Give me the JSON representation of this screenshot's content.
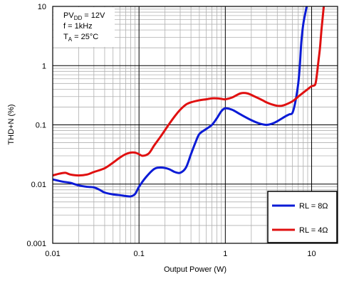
{
  "chart_data": {
    "type": "line",
    "xlabel": "Output Power (W)",
    "ylabel": "THD+N (%)",
    "xscale": "log",
    "yscale": "log",
    "xlim": [
      0.01,
      20
    ],
    "ylim": [
      0.001,
      10
    ],
    "grid": true,
    "x_ticks": [
      {
        "value": 0.01,
        "label": "0.01"
      },
      {
        "value": 0.1,
        "label": "0.1"
      },
      {
        "value": 1,
        "label": "1"
      },
      {
        "value": 10,
        "label": "10"
      }
    ],
    "y_ticks": [
      {
        "value": 0.001,
        "label": "0.001"
      },
      {
        "value": 0.01,
        "label": "0.01"
      },
      {
        "value": 0.1,
        "label": "0.1"
      },
      {
        "value": 1,
        "label": "1"
      },
      {
        "value": 10,
        "label": "10"
      }
    ],
    "conditions": {
      "line1_main": "PV",
      "line1_sub": "DD",
      "line1_rest": " = 12V",
      "line2": "f = 1kHz",
      "line3_main": "T",
      "line3_sub": "A",
      "line3_rest": " = 25°C"
    },
    "legend_position": "bottom-right",
    "series": [
      {
        "name": "RL = 8Ω",
        "color": "#0b1bd6",
        "x": [
          0.01,
          0.013,
          0.016,
          0.02,
          0.025,
          0.03,
          0.035,
          0.04,
          0.05,
          0.06,
          0.07,
          0.08,
          0.09,
          0.1,
          0.12,
          0.15,
          0.18,
          0.22,
          0.26,
          0.3,
          0.35,
          0.4,
          0.45,
          0.5,
          0.6,
          0.7,
          0.8,
          0.9,
          1.0,
          1.2,
          1.5,
          2.0,
          2.5,
          3.0,
          3.5,
          4.0,
          5.0,
          5.5,
          6.0,
          6.5,
          7.0,
          7.3,
          7.6,
          8.0,
          8.5,
          9.0
        ],
        "values": [
          0.012,
          0.011,
          0.0105,
          0.0095,
          0.009,
          0.0088,
          0.008,
          0.0072,
          0.0067,
          0.0065,
          0.0063,
          0.0062,
          0.0068,
          0.009,
          0.013,
          0.018,
          0.019,
          0.018,
          0.016,
          0.0155,
          0.019,
          0.032,
          0.05,
          0.07,
          0.085,
          0.1,
          0.13,
          0.17,
          0.19,
          0.18,
          0.15,
          0.12,
          0.105,
          0.1,
          0.105,
          0.115,
          0.14,
          0.15,
          0.16,
          0.25,
          0.5,
          1.0,
          2.5,
          5.0,
          8.0,
          12.0
        ]
      },
      {
        "name": "RL = 4Ω",
        "color": "#e01010",
        "x": [
          0.01,
          0.012,
          0.014,
          0.016,
          0.02,
          0.025,
          0.03,
          0.04,
          0.05,
          0.06,
          0.07,
          0.08,
          0.09,
          0.1,
          0.11,
          0.13,
          0.15,
          0.18,
          0.22,
          0.26,
          0.3,
          0.35,
          0.4,
          0.5,
          0.6,
          0.7,
          0.8,
          0.9,
          1.0,
          1.2,
          1.5,
          1.8,
          2.2,
          2.7,
          3.0,
          3.5,
          4.0,
          4.5,
          5.0,
          6.0,
          7.0,
          8.0,
          9.0,
          10.0,
          11.0,
          11.5,
          12.0,
          12.5,
          13.0,
          13.5,
          14.0
        ],
        "values": [
          0.014,
          0.015,
          0.0155,
          0.0145,
          0.014,
          0.0145,
          0.016,
          0.0185,
          0.023,
          0.028,
          0.032,
          0.034,
          0.034,
          0.032,
          0.03,
          0.033,
          0.045,
          0.065,
          0.1,
          0.14,
          0.18,
          0.22,
          0.24,
          0.26,
          0.27,
          0.28,
          0.28,
          0.275,
          0.27,
          0.29,
          0.34,
          0.34,
          0.3,
          0.26,
          0.24,
          0.22,
          0.21,
          0.21,
          0.22,
          0.25,
          0.3,
          0.35,
          0.4,
          0.45,
          0.48,
          0.7,
          1.2,
          2.0,
          4.0,
          7.0,
          12.0
        ]
      }
    ]
  }
}
